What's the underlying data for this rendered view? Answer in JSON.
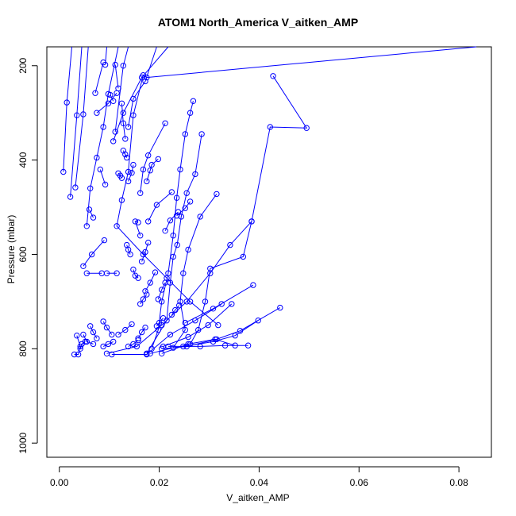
{
  "chart_data": {
    "type": "line",
    "title": "ATOM1 North_America V_aitken_AMP",
    "xlabel": "V_aitken_AMP",
    "ylabel": "Pressure (mbar)",
    "xlim": [
      -0.0025,
      0.0865
    ],
    "ylim": [
      1030,
      160
    ],
    "x_ticks": [
      0.0,
      0.02,
      0.04,
      0.06,
      0.08
    ],
    "x_tick_labels": [
      "0.00",
      "0.02",
      "0.04",
      "0.06",
      "0.08"
    ],
    "y_ticks": [
      200,
      400,
      600,
      800,
      1000
    ],
    "y_tick_labels": [
      "200",
      "400",
      "600",
      "800",
      "1000"
    ],
    "grid": false,
    "marker": "open-circle",
    "line_color": "#0000ff",
    "series": [
      {
        "points": [
          [
            0.0835,
            155
          ],
          [
            0.0175,
            225
          ],
          [
            0.0168,
            220
          ],
          [
            0.0148,
            305
          ],
          [
            0.0138,
            425
          ],
          [
            0.0125,
            485
          ],
          [
            0.0115,
            540
          ],
          [
            0.0168,
            600
          ],
          [
            0.0215,
            650
          ],
          [
            0.0262,
            700
          ],
          [
            0.0318,
            750
          ]
        ]
      },
      {
        "points": [
          [
            0.0428,
            222
          ],
          [
            0.0495,
            332
          ],
          [
            0.0422,
            330
          ],
          [
            0.0385,
            530
          ],
          [
            0.0342,
            580
          ],
          [
            0.0302,
            640
          ],
          [
            0.0255,
            700
          ],
          [
            0.0205,
            750
          ],
          [
            0.0155,
            795
          ],
          [
            0.0095,
            810
          ]
        ]
      },
      {
        "points": [
          [
            0.0268,
            275
          ],
          [
            0.0262,
            300
          ],
          [
            0.0252,
            345
          ],
          [
            0.0242,
            420
          ],
          [
            0.0235,
            480
          ],
          [
            0.0228,
            560
          ],
          [
            0.0218,
            640
          ],
          [
            0.0205,
            700
          ],
          [
            0.0198,
            760
          ],
          [
            0.0185,
            800
          ]
        ]
      },
      {
        "points": [
          [
            0.0285,
            345
          ],
          [
            0.0272,
            430
          ],
          [
            0.0255,
            470
          ],
          [
            0.0244,
            520
          ],
          [
            0.0236,
            580
          ],
          [
            0.0228,
            605
          ],
          [
            0.0222,
            660
          ],
          [
            0.0215,
            740
          ],
          [
            0.0175,
            810
          ]
        ]
      },
      {
        "points": [
          [
            0.0315,
            472
          ],
          [
            0.0282,
            520
          ],
          [
            0.0258,
            590
          ],
          [
            0.0248,
            640
          ],
          [
            0.0242,
            700
          ],
          [
            0.0252,
            760
          ],
          [
            0.0228,
            798
          ],
          [
            0.0182,
            810
          ]
        ]
      },
      {
        "points": [
          [
            0.0385,
            530
          ],
          [
            0.0368,
            605
          ],
          [
            0.0302,
            630
          ],
          [
            0.0292,
            700
          ],
          [
            0.0278,
            760
          ],
          [
            0.0262,
            790
          ]
        ]
      },
      {
        "points": [
          [
            0.0442,
            713
          ],
          [
            0.0362,
            762
          ],
          [
            0.0315,
            780
          ],
          [
            0.0255,
            795
          ],
          [
            0.0205,
            800
          ]
        ]
      },
      {
        "points": [
          [
            0.0398,
            740
          ],
          [
            0.0352,
            772
          ],
          [
            0.0308,
            785
          ],
          [
            0.0248,
            795
          ]
        ]
      },
      {
        "points": [
          [
            0.0345,
            705
          ],
          [
            0.0298,
            750
          ],
          [
            0.0258,
            775
          ],
          [
            0.0208,
            795
          ]
        ]
      },
      {
        "points": [
          [
            0.0378,
            793
          ],
          [
            0.0332,
            793
          ],
          [
            0.0282,
            795
          ],
          [
            0.0218,
            795
          ]
        ]
      },
      {
        "points": [
          [
            0.0388,
            665
          ],
          [
            0.0308,
            715
          ],
          [
            0.0252,
            745
          ]
        ]
      },
      {
        "points": [
          [
            0.0352,
            793
          ],
          [
            0.0312,
            780
          ],
          [
            0.0258,
            790
          ],
          [
            0.0205,
            810
          ]
        ]
      },
      {
        "points": [
          [
            0.0325,
            705
          ],
          [
            0.0272,
            740
          ],
          [
            0.0222,
            770
          ],
          [
            0.0175,
            812
          ],
          [
            0.0105,
            812
          ]
        ]
      },
      {
        "points": [
          [
            0.0118,
            140
          ],
          [
            0.0098,
            260
          ],
          [
            0.0088,
            330
          ],
          [
            0.0075,
            395
          ],
          [
            0.0062,
            460
          ],
          [
            0.0055,
            540
          ]
        ]
      },
      {
        "points": [
          [
            0.0025,
            140
          ],
          [
            0.0015,
            278
          ],
          [
            0.0008,
            425
          ]
        ]
      },
      {
        "points": [
          [
            0.0045,
            140
          ],
          [
            0.0035,
            305
          ],
          [
            0.0022,
            478
          ]
        ]
      },
      {
        "points": [
          [
            0.0058,
            140
          ],
          [
            0.0048,
            303
          ],
          [
            0.0032,
            458
          ]
        ]
      },
      {
        "points": [
          [
            0.0095,
            140
          ],
          [
            0.0092,
            198
          ]
        ]
      },
      {
        "points": [
          [
            0.0138,
            140
          ],
          [
            0.0128,
            200
          ],
          [
            0.0112,
            340
          ]
        ]
      },
      {
        "points": [
          [
            0.0218,
            140
          ],
          [
            0.0165,
            225
          ],
          [
            0.0128,
            300
          ],
          [
            0.0108,
            360
          ]
        ]
      },
      {
        "points": [
          [
            0.0195,
            140
          ],
          [
            0.0172,
            233
          ],
          [
            0.0148,
            270
          ],
          [
            0.0138,
            330
          ]
        ]
      },
      {
        "points": [
          [
            0.0088,
            193
          ],
          [
            0.0072,
            258
          ]
        ]
      },
      {
        "points": [
          [
            0.0115,
            258
          ],
          [
            0.0098,
            280
          ],
          [
            0.0075,
            300
          ]
        ]
      },
      {
        "points": [
          [
            0.0108,
            275
          ],
          [
            0.0102,
            262
          ]
        ]
      },
      {
        "points": [
          [
            0.0118,
            248
          ],
          [
            0.0112,
            198
          ]
        ]
      },
      {
        "points": [
          [
            0.0125,
            280
          ],
          [
            0.0128,
            322
          ],
          [
            0.0132,
            355
          ]
        ]
      },
      {
        "points": [
          [
            0.0212,
            322
          ],
          [
            0.0178,
            390
          ],
          [
            0.0168,
            420
          ],
          [
            0.0162,
            470
          ]
        ]
      },
      {
        "points": [
          [
            0.0198,
            398
          ],
          [
            0.0185,
            410
          ],
          [
            0.0182,
            422
          ],
          [
            0.0175,
            445
          ]
        ]
      },
      {
        "points": [
          [
            0.0132,
            388
          ],
          [
            0.0128,
            380
          ],
          [
            0.0135,
            395
          ]
        ]
      },
      {
        "points": [
          [
            0.0148,
            410
          ],
          [
            0.0145,
            427
          ],
          [
            0.0138,
            445
          ]
        ]
      },
      {
        "points": [
          [
            0.0122,
            433
          ],
          [
            0.0118,
            428
          ],
          [
            0.0125,
            438
          ]
        ]
      },
      {
        "points": [
          [
            0.0225,
            468
          ],
          [
            0.0195,
            495
          ],
          [
            0.0178,
            530
          ]
        ]
      },
      {
        "points": [
          [
            0.0262,
            488
          ],
          [
            0.0252,
            502
          ],
          [
            0.0235,
            518
          ]
        ]
      },
      {
        "points": [
          [
            0.0158,
            532
          ],
          [
            0.0152,
            530
          ],
          [
            0.0162,
            560
          ]
        ]
      },
      {
        "points": [
          [
            0.0238,
            510
          ],
          [
            0.0222,
            528
          ],
          [
            0.0212,
            550
          ]
        ]
      },
      {
        "points": [
          [
            0.0178,
            575
          ],
          [
            0.0172,
            595
          ],
          [
            0.0165,
            615
          ]
        ]
      },
      {
        "points": [
          [
            0.0135,
            580
          ],
          [
            0.0138,
            590
          ],
          [
            0.0142,
            600
          ]
        ]
      },
      {
        "points": [
          [
            0.0148,
            632
          ],
          [
            0.0152,
            645
          ],
          [
            0.0158,
            650
          ]
        ]
      },
      {
        "points": [
          [
            0.0192,
            638
          ],
          [
            0.0182,
            660
          ],
          [
            0.0172,
            678
          ]
        ]
      },
      {
        "points": [
          [
            0.0212,
            660
          ],
          [
            0.0205,
            675
          ],
          [
            0.0198,
            695
          ]
        ]
      },
      {
        "points": [
          [
            0.0085,
            640
          ],
          [
            0.0055,
            640
          ]
        ]
      },
      {
        "points": [
          [
            0.0115,
            640
          ],
          [
            0.0095,
            640
          ]
        ]
      },
      {
        "points": [
          [
            0.0048,
            625
          ],
          [
            0.0065,
            600
          ],
          [
            0.009,
            570
          ]
        ]
      },
      {
        "points": [
          [
            0.0068,
            522
          ],
          [
            0.006,
            505
          ]
        ]
      },
      {
        "points": [
          [
            0.0092,
            452
          ],
          [
            0.0082,
            420
          ]
        ]
      },
      {
        "points": [
          [
            0.0062,
            752
          ],
          [
            0.0068,
            765
          ],
          [
            0.0075,
            778
          ]
        ]
      },
      {
        "points": [
          [
            0.0088,
            742
          ],
          [
            0.0095,
            755
          ],
          [
            0.0105,
            770
          ]
        ]
      },
      {
        "points": [
          [
            0.0048,
            770
          ],
          [
            0.0055,
            785
          ],
          [
            0.0068,
            790
          ]
        ]
      },
      {
        "points": [
          [
            0.0035,
            772
          ],
          [
            0.0042,
            795
          ],
          [
            0.0038,
            812
          ],
          [
            0.003,
            812
          ]
        ]
      },
      {
        "points": [
          [
            0.0042,
            800
          ],
          [
            0.0045,
            790
          ],
          [
            0.0052,
            785
          ]
        ]
      },
      {
        "points": [
          [
            0.0118,
            770
          ],
          [
            0.0132,
            760
          ],
          [
            0.0145,
            748
          ]
        ]
      },
      {
        "points": [
          [
            0.0158,
            778
          ],
          [
            0.0165,
            765
          ],
          [
            0.0172,
            755
          ]
        ]
      },
      {
        "points": [
          [
            0.0195,
            752
          ],
          [
            0.02,
            745
          ],
          [
            0.0208,
            735
          ]
        ]
      },
      {
        "points": [
          [
            0.0225,
            728
          ],
          [
            0.0232,
            718
          ],
          [
            0.024,
            708
          ]
        ]
      },
      {
        "points": [
          [
            0.0162,
            705
          ],
          [
            0.0168,
            695
          ],
          [
            0.0175,
            685
          ]
        ]
      },
      {
        "points": [
          [
            0.0138,
            795
          ],
          [
            0.0148,
            790
          ],
          [
            0.0158,
            782
          ]
        ]
      },
      {
        "points": [
          [
            0.0088,
            795
          ],
          [
            0.0098,
            790
          ],
          [
            0.0108,
            785
          ]
        ]
      }
    ]
  }
}
